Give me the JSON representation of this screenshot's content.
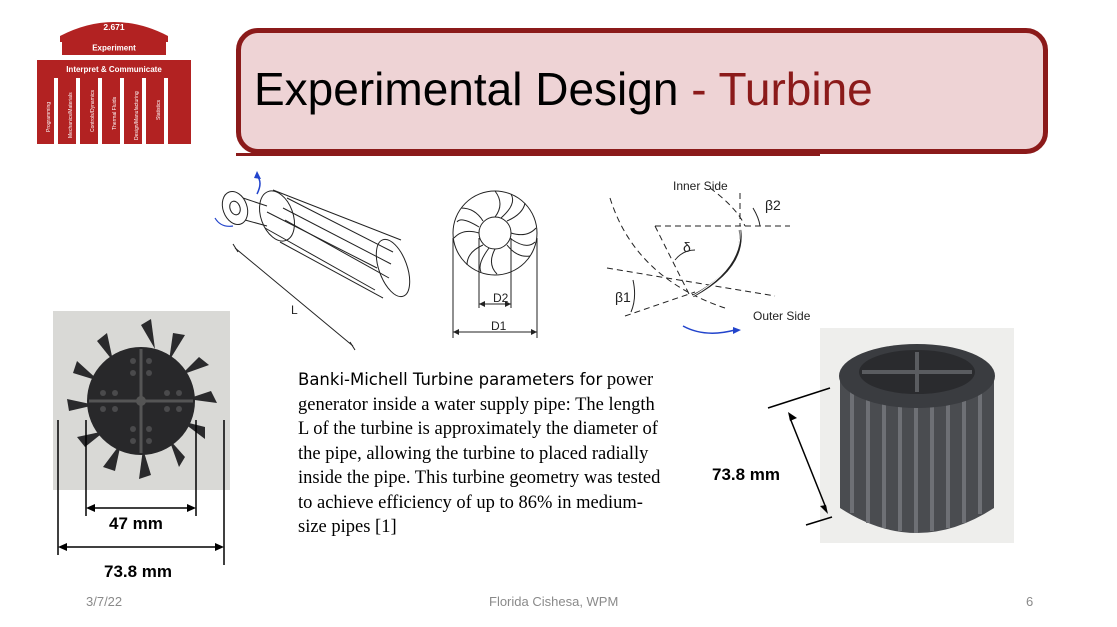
{
  "logo": {
    "course": "2.671",
    "top_label": "Experiment",
    "bar_label": "Interpret & Communicate",
    "pillars": [
      "Programming",
      "Mechanics/Materials",
      "Controls/Dynamics",
      "Thermal Fluids",
      "Design/Manufacturing",
      "Statistics"
    ],
    "color": "#b22222"
  },
  "title": {
    "main": "Experimental Design ",
    "dash": "- ",
    "accent": "Turbine",
    "accent_color": "#8b1a1a"
  },
  "diagram": {
    "length_label": "L",
    "inner_diameter_label": "D2",
    "outer_diameter_label": "D1",
    "inner_side_label": "Inner Side",
    "outer_side_label": "Outer Side",
    "beta1_label": "β1",
    "beta2_label": "β2",
    "delta_label": "δ"
  },
  "dimensions": {
    "inner_width": "47 mm",
    "outer_width": "73.8 mm",
    "height": "73.8 mm"
  },
  "body": {
    "lead": "Banki-Michell Turbine parameters for",
    "rest": "power generator inside a water supply pipe: The length L of the turbine is approximately the diameter of the pipe, allowing the turbine to placed radially inside the pipe. This turbine geometry was tested to achieve efficiency of up to 86% in medium-size pipes [1]"
  },
  "footer": {
    "date": "3/7/22",
    "author": "Florida Cishesa, WPM",
    "page": "6"
  }
}
